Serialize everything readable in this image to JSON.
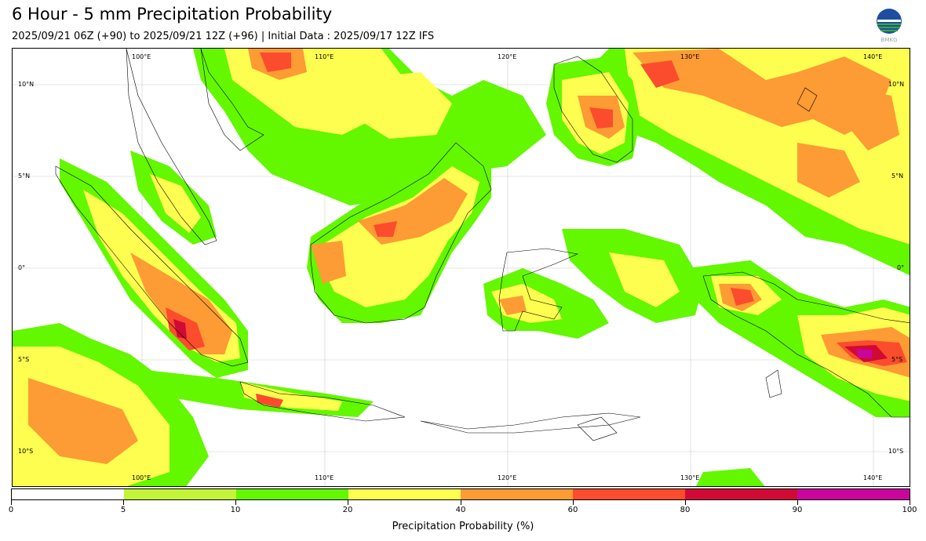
{
  "header": {
    "title": "6 Hour - 5 mm Precipitation Probability",
    "subtitle": "2025/09/21 06Z (+90) to 2025/09/21 12Z (+96) | Initial Data : 2025/09/17 12Z IFS",
    "logo_text": "BMKG"
  },
  "map": {
    "lon_labels": [
      "100°E",
      "110°E",
      "120°E",
      "130°E",
      "140°E"
    ],
    "lat_labels": [
      "10°N",
      "5°N",
      "0°",
      "5°S",
      "10°S"
    ]
  },
  "colorbar": {
    "title": "Precipitation Probability (%)",
    "ticks": [
      "0",
      "5",
      "10",
      "20",
      "40",
      "60",
      "80",
      "90",
      "100"
    ],
    "colors": [
      "#ffffff",
      "#c3f43a",
      "#63f700",
      "#fefe50",
      "#fd9b34",
      "#fb4c2d",
      "#d00a35",
      "#c8069c"
    ]
  }
}
